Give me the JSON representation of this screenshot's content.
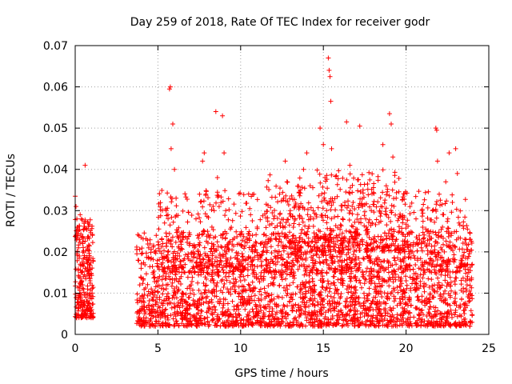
{
  "chart_data": {
    "type": "scatter",
    "title": "Day 259 of 2018, Rate Of TEC Index for receiver godr",
    "xlabel": "GPS time / hours",
    "ylabel": "ROTI / TECUs",
    "xlim": [
      0,
      25
    ],
    "ylim": [
      0,
      0.07
    ],
    "grid": true,
    "marker": "+",
    "marker_color": "#ff0000",
    "xticks": [
      0,
      5,
      10,
      15,
      20,
      25
    ],
    "xtick_labels": [
      "0",
      "5",
      "10",
      "15",
      "20",
      "25"
    ],
    "yticks": [
      0,
      0.01,
      0.02,
      0.03,
      0.04,
      0.05,
      0.06,
      0.07
    ],
    "ytick_labels": [
      "0",
      "0.01",
      "0.02",
      "0.03",
      "0.04",
      "0.05",
      "0.06",
      "0.07"
    ],
    "points": [
      [
        0.0,
        0.0335
      ],
      [
        0.05,
        0.031
      ],
      [
        0.1,
        0.028
      ],
      [
        0.15,
        0.024
      ],
      [
        0.2,
        0.021
      ],
      [
        0.25,
        0.019
      ],
      [
        0.3,
        0.017
      ],
      [
        0.35,
        0.015
      ],
      [
        0.4,
        0.013
      ],
      [
        0.45,
        0.012
      ],
      [
        0.5,
        0.011
      ],
      [
        0.55,
        0.0095
      ],
      [
        0.6,
        0.041
      ],
      [
        0.65,
        0.009
      ],
      [
        0.7,
        0.008
      ],
      [
        0.75,
        0.007
      ],
      [
        0.8,
        0.006
      ],
      [
        0.85,
        0.006
      ],
      [
        0.9,
        0.005
      ],
      [
        0.95,
        0.005
      ],
      [
        1.0,
        0.006
      ],
      [
        0.15,
        0.026
      ],
      [
        0.3,
        0.029
      ],
      [
        0.45,
        0.022
      ],
      [
        0.6,
        0.016
      ],
      [
        0.75,
        0.011
      ],
      [
        0.9,
        0.013
      ],
      [
        0.2,
        0.009
      ],
      [
        0.5,
        0.014
      ],
      [
        0.8,
        0.018
      ],
      [
        3.8,
        0.018
      ],
      [
        3.9,
        0.012
      ],
      [
        4.0,
        0.008
      ],
      [
        4.1,
        0.006
      ],
      [
        4.2,
        0.005
      ],
      [
        4.3,
        0.004
      ],
      [
        4.4,
        0.003
      ],
      [
        4.5,
        0.007
      ],
      [
        4.6,
        0.011
      ],
      [
        4.7,
        0.015
      ],
      [
        4.8,
        0.02
      ],
      [
        4.9,
        0.024
      ],
      [
        5.0,
        0.013
      ],
      [
        5.1,
        0.009
      ],
      [
        5.2,
        0.017
      ],
      [
        5.3,
        0.022
      ],
      [
        5.4,
        0.027
      ],
      [
        5.5,
        0.03
      ],
      [
        5.6,
        0.02
      ],
      [
        5.7,
        0.0595
      ],
      [
        5.75,
        0.06
      ],
      [
        5.8,
        0.045
      ],
      [
        5.9,
        0.051
      ],
      [
        6.0,
        0.04
      ],
      [
        6.1,
        0.033
      ],
      [
        6.2,
        0.025
      ],
      [
        6.3,
        0.019
      ],
      [
        6.4,
        0.014
      ],
      [
        6.5,
        0.01
      ],
      [
        6.6,
        0.008
      ],
      [
        6.7,
        0.006
      ],
      [
        6.8,
        0.005
      ],
      [
        6.9,
        0.009
      ],
      [
        7.0,
        0.012
      ],
      [
        7.1,
        0.016
      ],
      [
        7.2,
        0.021
      ],
      [
        7.3,
        0.028
      ],
      [
        7.4,
        0.024
      ],
      [
        7.5,
        0.019
      ],
      [
        7.6,
        0.015
      ],
      [
        7.7,
        0.042
      ],
      [
        7.8,
        0.044
      ],
      [
        7.9,
        0.034
      ],
      [
        8.0,
        0.025
      ],
      [
        8.1,
        0.018
      ],
      [
        8.2,
        0.013
      ],
      [
        8.3,
        0.01
      ],
      [
        8.4,
        0.03
      ],
      [
        8.5,
        0.054
      ],
      [
        8.6,
        0.038
      ],
      [
        8.7,
        0.031
      ],
      [
        8.8,
        0.024
      ],
      [
        8.9,
        0.053
      ],
      [
        9.0,
        0.044
      ],
      [
        9.1,
        0.03
      ],
      [
        9.2,
        0.021
      ],
      [
        9.3,
        0.015
      ],
      [
        9.4,
        0.011
      ],
      [
        9.5,
        0.008
      ],
      [
        9.6,
        0.006
      ],
      [
        9.7,
        0.005
      ],
      [
        9.8,
        0.007
      ],
      [
        9.9,
        0.01
      ],
      [
        10.0,
        0.013
      ],
      [
        10.2,
        0.018
      ],
      [
        10.4,
        0.023
      ],
      [
        10.6,
        0.029
      ],
      [
        10.8,
        0.034
      ],
      [
        11.0,
        0.026
      ],
      [
        11.2,
        0.019
      ],
      [
        11.4,
        0.014
      ],
      [
        11.6,
        0.01
      ],
      [
        11.8,
        0.008
      ],
      [
        12.0,
        0.012
      ],
      [
        12.2,
        0.02
      ],
      [
        12.4,
        0.027
      ],
      [
        12.6,
        0.033
      ],
      [
        12.7,
        0.042
      ],
      [
        12.8,
        0.037
      ],
      [
        13.0,
        0.03
      ],
      [
        13.2,
        0.024
      ],
      [
        13.4,
        0.018
      ],
      [
        13.6,
        0.035
      ],
      [
        13.8,
        0.04
      ],
      [
        14.0,
        0.044
      ],
      [
        14.2,
        0.036
      ],
      [
        14.4,
        0.028
      ],
      [
        14.6,
        0.021
      ],
      [
        14.8,
        0.05
      ],
      [
        15.0,
        0.046
      ],
      [
        15.1,
        0.038
      ],
      [
        15.2,
        0.03
      ],
      [
        15.3,
        0.067
      ],
      [
        15.35,
        0.064
      ],
      [
        15.4,
        0.0625
      ],
      [
        15.45,
        0.0565
      ],
      [
        15.5,
        0.045
      ],
      [
        15.6,
        0.032
      ],
      [
        15.8,
        0.024
      ],
      [
        16.0,
        0.018
      ],
      [
        16.2,
        0.013
      ],
      [
        16.4,
        0.0515
      ],
      [
        16.6,
        0.041
      ],
      [
        16.8,
        0.032
      ],
      [
        17.0,
        0.024
      ],
      [
        17.2,
        0.0505
      ],
      [
        17.4,
        0.035
      ],
      [
        17.6,
        0.026
      ],
      [
        17.8,
        0.019
      ],
      [
        18.0,
        0.014
      ],
      [
        18.2,
        0.01
      ],
      [
        18.4,
        0.03
      ],
      [
        18.6,
        0.046
      ],
      [
        18.8,
        0.036
      ],
      [
        19.0,
        0.0535
      ],
      [
        19.1,
        0.051
      ],
      [
        19.2,
        0.043
      ],
      [
        19.4,
        0.033
      ],
      [
        19.6,
        0.025
      ],
      [
        19.8,
        0.018
      ],
      [
        20.0,
        0.013
      ],
      [
        20.2,
        0.009
      ],
      [
        20.4,
        0.02
      ],
      [
        20.6,
        0.028
      ],
      [
        20.8,
        0.024
      ],
      [
        21.0,
        0.017
      ],
      [
        21.2,
        0.012
      ],
      [
        21.4,
        0.008
      ],
      [
        21.6,
        0.03
      ],
      [
        21.8,
        0.05
      ],
      [
        21.85,
        0.0495
      ],
      [
        21.9,
        0.042
      ],
      [
        22.0,
        0.034
      ],
      [
        22.2,
        0.026
      ],
      [
        22.4,
        0.037
      ],
      [
        22.6,
        0.044
      ],
      [
        22.8,
        0.032
      ],
      [
        23.0,
        0.045
      ],
      [
        23.1,
        0.039
      ],
      [
        23.2,
        0.027
      ],
      [
        23.4,
        0.019
      ],
      [
        23.6,
        0.013
      ],
      [
        23.8,
        0.008
      ],
      [
        23.9,
        0.003
      ]
    ],
    "density": {
      "note": "dense cloud of additional points in the 0.003-0.03 band",
      "segments": [
        {
          "x": [
            0.0,
            1.1
          ],
          "y": [
            0.004,
            0.028
          ],
          "n": 240
        },
        {
          "x": [
            3.7,
            24.0
          ],
          "y": [
            0.002,
            0.025
          ],
          "n": 2600
        },
        {
          "x": [
            5.0,
            23.8
          ],
          "y": [
            0.015,
            0.035
          ],
          "n": 700
        },
        {
          "x": [
            11.5,
            20.0
          ],
          "y": [
            0.02,
            0.04
          ],
          "n": 350
        }
      ]
    }
  }
}
